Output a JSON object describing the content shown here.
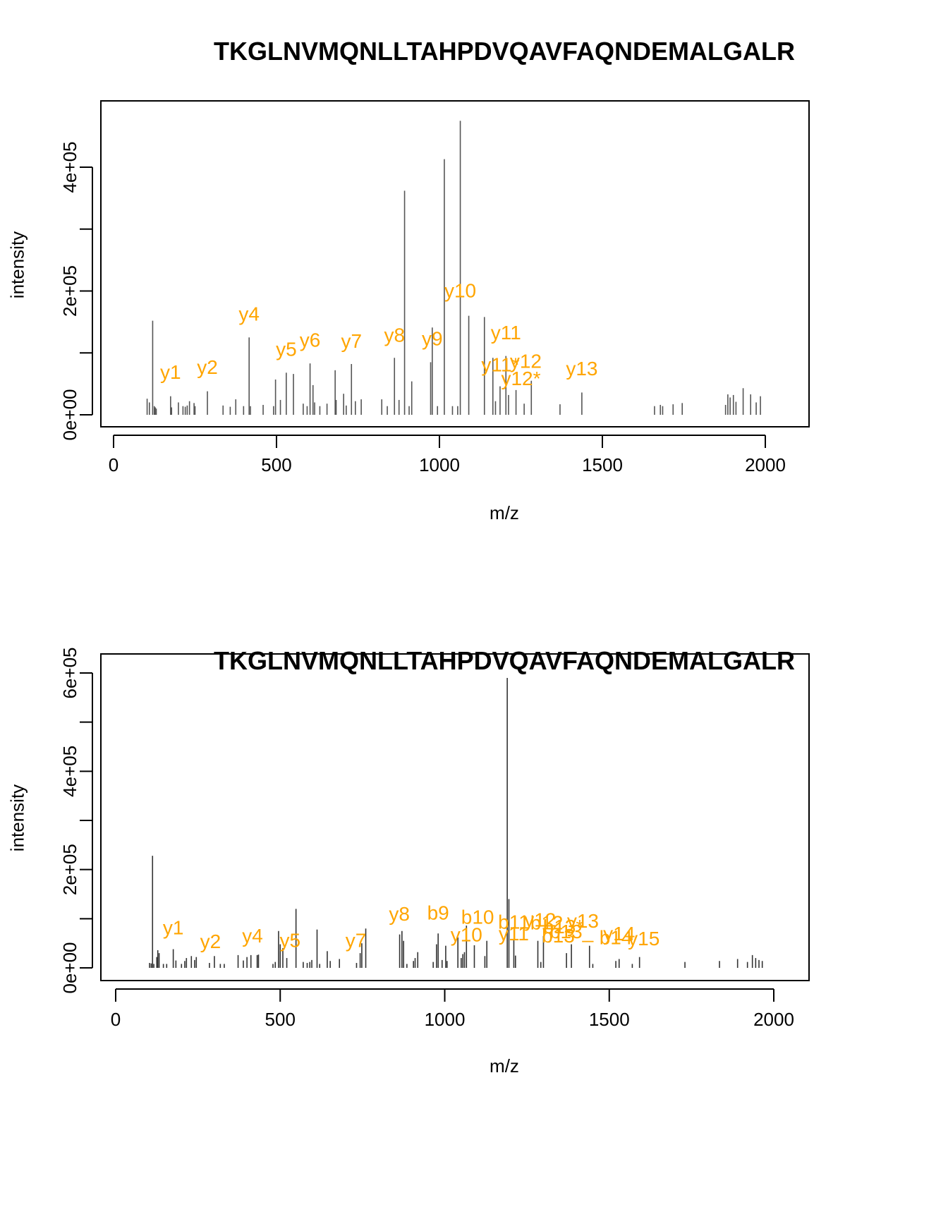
{
  "chart_data": [
    {
      "type": "bar",
      "subtype": "mass-spectrum-stick",
      "title": "TKGLNVMQNLLTAHPDVQAVFAQNDEMALGALR",
      "xlabel": "m/z",
      "ylabel": "intensity",
      "xlim": [
        0,
        2100
      ],
      "ylim": [
        0,
        480000
      ],
      "xticks": [
        0,
        500,
        1000,
        1500,
        2000
      ],
      "xtick_labels": [
        "0",
        "500",
        "1000",
        "1500",
        "2000"
      ],
      "yticks": [
        0,
        100000,
        200000,
        300000,
        400000
      ],
      "ytick_labels": [
        "0e+00",
        "",
        "2e+05",
        "",
        "4e+05"
      ],
      "grid": false,
      "peak_color": "#555555",
      "annotation_color": "#FFA500",
      "peaks": [
        {
          "mz": 103,
          "intensity": 26000
        },
        {
          "mz": 110,
          "intensity": 20000
        },
        {
          "mz": 120,
          "intensity": 152000
        },
        {
          "mz": 125,
          "intensity": 14000
        },
        {
          "mz": 128,
          "intensity": 12000
        },
        {
          "mz": 131,
          "intensity": 10000
        },
        {
          "mz": 175,
          "intensity": 30000
        },
        {
          "mz": 178,
          "intensity": 12000
        },
        {
          "mz": 199,
          "intensity": 20000
        },
        {
          "mz": 213,
          "intensity": 14000
        },
        {
          "mz": 220,
          "intensity": 13000
        },
        {
          "mz": 226,
          "intensity": 15000
        },
        {
          "mz": 233,
          "intensity": 22000
        },
        {
          "mz": 247,
          "intensity": 19000
        },
        {
          "mz": 250,
          "intensity": 14000
        },
        {
          "mz": 288,
          "intensity": 38000
        },
        {
          "mz": 336,
          "intensity": 15000
        },
        {
          "mz": 358,
          "intensity": 13000
        },
        {
          "mz": 375,
          "intensity": 25000
        },
        {
          "mz": 399,
          "intensity": 14000
        },
        {
          "mz": 416,
          "intensity": 125000
        },
        {
          "mz": 420,
          "intensity": 14000
        },
        {
          "mz": 459,
          "intensity": 16000
        },
        {
          "mz": 491,
          "intensity": 14000
        },
        {
          "mz": 497,
          "intensity": 57000
        },
        {
          "mz": 512,
          "intensity": 24000
        },
        {
          "mz": 530,
          "intensity": 68000
        },
        {
          "mz": 552,
          "intensity": 66000
        },
        {
          "mz": 582,
          "intensity": 18000
        },
        {
          "mz": 594,
          "intensity": 14000
        },
        {
          "mz": 603,
          "intensity": 83000
        },
        {
          "mz": 612,
          "intensity": 48000
        },
        {
          "mz": 617,
          "intensity": 20000
        },
        {
          "mz": 633,
          "intensity": 14000
        },
        {
          "mz": 655,
          "intensity": 18000
        },
        {
          "mz": 680,
          "intensity": 72000
        },
        {
          "mz": 683,
          "intensity": 24000
        },
        {
          "mz": 706,
          "intensity": 34000
        },
        {
          "mz": 714,
          "intensity": 15000
        },
        {
          "mz": 730,
          "intensity": 82000
        },
        {
          "mz": 742,
          "intensity": 22000
        },
        {
          "mz": 760,
          "intensity": 25000
        },
        {
          "mz": 823,
          "intensity": 25000
        },
        {
          "mz": 840,
          "intensity": 14000
        },
        {
          "mz": 862,
          "intensity": 92000
        },
        {
          "mz": 876,
          "intensity": 24000
        },
        {
          "mz": 893,
          "intensity": 362000
        },
        {
          "mz": 907,
          "intensity": 14000
        },
        {
          "mz": 915,
          "intensity": 54000
        },
        {
          "mz": 973,
          "intensity": 85000
        },
        {
          "mz": 978,
          "intensity": 141000
        },
        {
          "mz": 994,
          "intensity": 14000
        },
        {
          "mz": 1015,
          "intensity": 413000
        },
        {
          "mz": 1040,
          "intensity": 14000
        },
        {
          "mz": 1056,
          "intensity": 14000
        },
        {
          "mz": 1064,
          "intensity": 475000
        },
        {
          "mz": 1090,
          "intensity": 160000
        },
        {
          "mz": 1138,
          "intensity": 158000
        },
        {
          "mz": 1164,
          "intensity": 92000
        },
        {
          "mz": 1172,
          "intensity": 22000
        },
        {
          "mz": 1186,
          "intensity": 46000
        },
        {
          "mz": 1204,
          "intensity": 95000
        },
        {
          "mz": 1212,
          "intensity": 32000
        },
        {
          "mz": 1235,
          "intensity": 40000
        },
        {
          "mz": 1260,
          "intensity": 18000
        },
        {
          "mz": 1282,
          "intensity": 55000
        },
        {
          "mz": 1370,
          "intensity": 17000
        },
        {
          "mz": 1437,
          "intensity": 36000
        },
        {
          "mz": 1660,
          "intensity": 14000
        },
        {
          "mz": 1678,
          "intensity": 16000
        },
        {
          "mz": 1685,
          "intensity": 14000
        },
        {
          "mz": 1717,
          "intensity": 17000
        },
        {
          "mz": 1745,
          "intensity": 19000
        },
        {
          "mz": 1878,
          "intensity": 16000
        },
        {
          "mz": 1885,
          "intensity": 33000
        },
        {
          "mz": 1892,
          "intensity": 28000
        },
        {
          "mz": 1902,
          "intensity": 32000
        },
        {
          "mz": 1910,
          "intensity": 21000
        },
        {
          "mz": 1932,
          "intensity": 43000
        },
        {
          "mz": 1955,
          "intensity": 33000
        },
        {
          "mz": 1972,
          "intensity": 20000
        },
        {
          "mz": 1985,
          "intensity": 30000
        }
      ],
      "annotations": [
        {
          "label": "y1",
          "mz": 175,
          "y": 58000
        },
        {
          "label": "y2",
          "mz": 288,
          "y": 66000
        },
        {
          "label": "y4",
          "mz": 416,
          "y": 152000
        },
        {
          "label": "y5",
          "mz": 530,
          "y": 95000
        },
        {
          "label": "y6",
          "mz": 603,
          "y": 110000
        },
        {
          "label": "y7",
          "mz": 730,
          "y": 108000
        },
        {
          "label": "y8",
          "mz": 862,
          "y": 118000
        },
        {
          "label": "y9",
          "mz": 978,
          "y": 112000
        },
        {
          "label": "y10",
          "mz": 1064,
          "y": 190000
        },
        {
          "label": "y11",
          "mz": 1204,
          "y": 122000
        },
        {
          "label": "y11*",
          "mz": 1187,
          "y": 70000
        },
        {
          "label": "y12",
          "mz": 1265,
          "y": 76000
        },
        {
          "label": "y12*",
          "mz": 1250,
          "y": 48000
        },
        {
          "label": "y13",
          "mz": 1437,
          "y": 64000
        }
      ]
    },
    {
      "type": "bar",
      "subtype": "mass-spectrum-stick",
      "title": "TKGLNVMQNLLTAHPDVQAVFAQNDEMALGALR",
      "xlabel": "m/z",
      "ylabel": "intensity",
      "xlim": [
        0,
        2100
      ],
      "ylim": [
        0,
        640000
      ],
      "xticks": [
        0,
        500,
        1000,
        1500,
        2000
      ],
      "xtick_labels": [
        "0",
        "500",
        "1000",
        "1500",
        "2000"
      ],
      "yticks": [
        0,
        100000,
        200000,
        300000,
        400000,
        500000,
        600000
      ],
      "ytick_labels": [
        "0e+00",
        "",
        "2e+05",
        "",
        "4e+05",
        "",
        "6e+05"
      ],
      "grid": false,
      "peak_color": "#333333",
      "annotation_color": "#FFA500",
      "peaks": [
        {
          "mz": 103,
          "intensity": 10000
        },
        {
          "mz": 108,
          "intensity": 9000
        },
        {
          "mz": 112,
          "intensity": 228000
        },
        {
          "mz": 116,
          "intensity": 8000
        },
        {
          "mz": 125,
          "intensity": 22000
        },
        {
          "mz": 128,
          "intensity": 36000
        },
        {
          "mz": 132,
          "intensity": 30000
        },
        {
          "mz": 145,
          "intensity": 8000
        },
        {
          "mz": 155,
          "intensity": 8000
        },
        {
          "mz": 175,
          "intensity": 38000
        },
        {
          "mz": 183,
          "intensity": 15000
        },
        {
          "mz": 200,
          "intensity": 8000
        },
        {
          "mz": 210,
          "intensity": 14000
        },
        {
          "mz": 215,
          "intensity": 20000
        },
        {
          "mz": 230,
          "intensity": 24000
        },
        {
          "mz": 240,
          "intensity": 16000
        },
        {
          "mz": 245,
          "intensity": 22000
        },
        {
          "mz": 285,
          "intensity": 10000
        },
        {
          "mz": 300,
          "intensity": 24000
        },
        {
          "mz": 318,
          "intensity": 8000
        },
        {
          "mz": 330,
          "intensity": 8000
        },
        {
          "mz": 372,
          "intensity": 26000
        },
        {
          "mz": 388,
          "intensity": 15000
        },
        {
          "mz": 399,
          "intensity": 22000
        },
        {
          "mz": 411,
          "intensity": 26000
        },
        {
          "mz": 430,
          "intensity": 26000
        },
        {
          "mz": 434,
          "intensity": 27000
        },
        {
          "mz": 478,
          "intensity": 8000
        },
        {
          "mz": 485,
          "intensity": 12000
        },
        {
          "mz": 495,
          "intensity": 75000
        },
        {
          "mz": 500,
          "intensity": 48000
        },
        {
          "mz": 508,
          "intensity": 40000
        },
        {
          "mz": 520,
          "intensity": 20000
        },
        {
          "mz": 548,
          "intensity": 120000
        },
        {
          "mz": 570,
          "intensity": 12000
        },
        {
          "mz": 582,
          "intensity": 10000
        },
        {
          "mz": 590,
          "intensity": 12000
        },
        {
          "mz": 596,
          "intensity": 16000
        },
        {
          "mz": 612,
          "intensity": 78000
        },
        {
          "mz": 620,
          "intensity": 8000
        },
        {
          "mz": 643,
          "intensity": 34000
        },
        {
          "mz": 652,
          "intensity": 14000
        },
        {
          "mz": 680,
          "intensity": 18000
        },
        {
          "mz": 732,
          "intensity": 10000
        },
        {
          "mz": 743,
          "intensity": 30000
        },
        {
          "mz": 748,
          "intensity": 50000
        },
        {
          "mz": 760,
          "intensity": 80000
        },
        {
          "mz": 863,
          "intensity": 68000
        },
        {
          "mz": 870,
          "intensity": 75000
        },
        {
          "mz": 875,
          "intensity": 55000
        },
        {
          "mz": 885,
          "intensity": 8000
        },
        {
          "mz": 905,
          "intensity": 14000
        },
        {
          "mz": 910,
          "intensity": 20000
        },
        {
          "mz": 918,
          "intensity": 32000
        },
        {
          "mz": 965,
          "intensity": 12000
        },
        {
          "mz": 975,
          "intensity": 48000
        },
        {
          "mz": 980,
          "intensity": 70000
        },
        {
          "mz": 992,
          "intensity": 16000
        },
        {
          "mz": 1003,
          "intensity": 45000
        },
        {
          "mz": 1007,
          "intensity": 14000
        },
        {
          "mz": 1040,
          "intensity": 62000
        },
        {
          "mz": 1050,
          "intensity": 20000
        },
        {
          "mz": 1055,
          "intensity": 28000
        },
        {
          "mz": 1060,
          "intensity": 32000
        },
        {
          "mz": 1066,
          "intensity": 86000
        },
        {
          "mz": 1090,
          "intensity": 46000
        },
        {
          "mz": 1122,
          "intensity": 24000
        },
        {
          "mz": 1128,
          "intensity": 55000
        },
        {
          "mz": 1190,
          "intensity": 590000
        },
        {
          "mz": 1195,
          "intensity": 140000
        },
        {
          "mz": 1210,
          "intensity": 58000
        },
        {
          "mz": 1215,
          "intensity": 25000
        },
        {
          "mz": 1283,
          "intensity": 55000
        },
        {
          "mz": 1292,
          "intensity": 12000
        },
        {
          "mz": 1300,
          "intensity": 65000
        },
        {
          "mz": 1370,
          "intensity": 30000
        },
        {
          "mz": 1385,
          "intensity": 48000
        },
        {
          "mz": 1440,
          "intensity": 45000
        },
        {
          "mz": 1450,
          "intensity": 8000
        },
        {
          "mz": 1520,
          "intensity": 14000
        },
        {
          "mz": 1530,
          "intensity": 18000
        },
        {
          "mz": 1570,
          "intensity": 8000
        },
        {
          "mz": 1592,
          "intensity": 22000
        },
        {
          "mz": 1730,
          "intensity": 12000
        },
        {
          "mz": 1835,
          "intensity": 14000
        },
        {
          "mz": 1890,
          "intensity": 18000
        },
        {
          "mz": 1920,
          "intensity": 12000
        },
        {
          "mz": 1935,
          "intensity": 26000
        },
        {
          "mz": 1945,
          "intensity": 20000
        },
        {
          "mz": 1955,
          "intensity": 16000
        },
        {
          "mz": 1965,
          "intensity": 14000
        }
      ],
      "annotations": [
        {
          "label": "y1",
          "mz": 175,
          "y": 68000
        },
        {
          "label": "y2",
          "mz": 288,
          "y": 40000
        },
        {
          "label": "y4",
          "mz": 416,
          "y": 52000
        },
        {
          "label": "y5",
          "mz": 530,
          "y": 42000
        },
        {
          "label": "y7",
          "mz": 730,
          "y": 42000
        },
        {
          "label": "y8",
          "mz": 862,
          "y": 96000
        },
        {
          "label": "b9",
          "mz": 980,
          "y": 98000
        },
        {
          "label": "y10",
          "mz": 1066,
          "y": 54000
        },
        {
          "label": "b10",
          "mz": 1100,
          "y": 90000
        },
        {
          "label": "y11",
          "mz": 1210,
          "y": 56000
        },
        {
          "label": "b11",
          "mz": 1210,
          "y": 80000
        },
        {
          "label": "y12",
          "mz": 1290,
          "y": 84000
        },
        {
          "label": "b12",
          "mz": 1310,
          "y": 78000
        },
        {
          "label": "b13",
          "mz": 1345,
          "y": 52000
        },
        {
          "label": "b13*",
          "mz": 1360,
          "y": 70000
        },
        {
          "label": "b13_",
          "mz": 1385,
          "y": 60000
        },
        {
          "label": "y13",
          "mz": 1420,
          "y": 82000
        },
        {
          "label": "b14",
          "mz": 1520,
          "y": 48000
        },
        {
          "label": "y14",
          "mz": 1530,
          "y": 56000
        },
        {
          "label": "y15",
          "mz": 1605,
          "y": 46000
        }
      ]
    }
  ],
  "plots": {
    "top": {
      "title": "TKGLNVMQNLLTAHPDVQAVFAQNDEMALGALR",
      "xlabel": "m/z",
      "ylabel": "intensity"
    },
    "bottom": {
      "title": "TKGLNVMQNLLTAHPDVQAVFAQNDEMALGALR",
      "xlabel": "m/z",
      "ylabel": "intensity"
    }
  }
}
